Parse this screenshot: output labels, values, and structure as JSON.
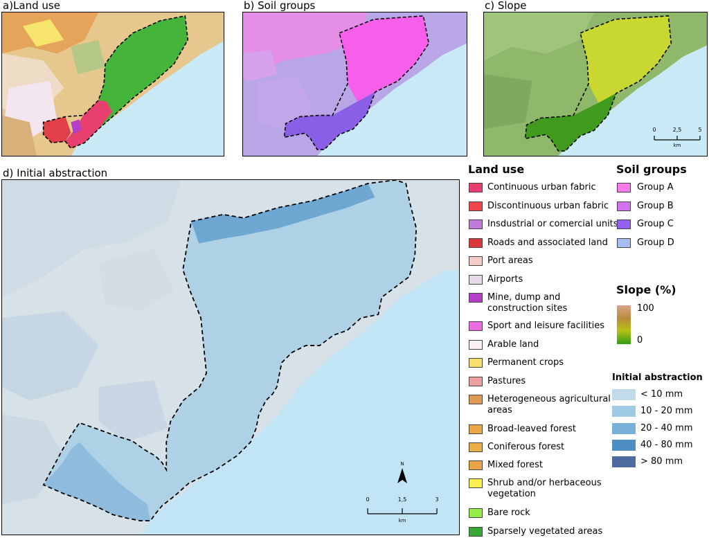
{
  "panels": {
    "a": {
      "title": "a)Land use"
    },
    "b": {
      "title": "b) Soil groups"
    },
    "c": {
      "title": "c) Slope"
    },
    "d": {
      "title": "d) Initial abstraction"
    }
  },
  "scalebar_c": {
    "ticks": [
      "0",
      "2,5",
      "5"
    ],
    "unit": "km"
  },
  "scalebar_d": {
    "ticks": [
      "0",
      "1,5",
      "3"
    ],
    "unit": "km",
    "north": "N"
  },
  "legend_land_use": {
    "title": "Land use",
    "items": [
      {
        "label": "Continuous urban fabric",
        "color": "#e8406e"
      },
      {
        "label": "Discontinuous urban fabric",
        "color": "#f0484a"
      },
      {
        "label": "Insdustrial or comercial units",
        "color": "#c07ad8"
      },
      {
        "label": "Roads and associated land",
        "color": "#d8383a"
      },
      {
        "label": "Port areas",
        "color": "#f2cdc8"
      },
      {
        "label": "Airports",
        "color": "#e6d8e8"
      },
      {
        "label": "Mine, dump and construction sites",
        "color": "#b43ec8"
      },
      {
        "label": "Sport and leisure facilities",
        "color": "#ea6ce0"
      },
      {
        "label": "Arable land",
        "color": "#fbf0f5"
      },
      {
        "label": "Permanent crops",
        "color": "#f8e070"
      },
      {
        "label": "Pastures",
        "color": "#eda0a0"
      },
      {
        "label": "Heterogeneous agricultural areas",
        "color": "#e09a58"
      },
      {
        "label": "Broad-leaved forest",
        "color": "#e8a848"
      },
      {
        "label": "Coniferous forest",
        "color": "#e8ae48"
      },
      {
        "label": "Mixed forest",
        "color": "#e8a448"
      },
      {
        "label": "Shrub and/or herbaceous vegetation",
        "color": "#f8f050"
      },
      {
        "label": "Bare rock",
        "color": "#98ec48"
      },
      {
        "label": "Sparsely vegetated areas",
        "color": "#3aa838"
      }
    ]
  },
  "legend_soil": {
    "title": "Soil groups",
    "items": [
      {
        "label": "Group A",
        "color": "#f77be9"
      },
      {
        "label": "Group B",
        "color": "#d272ef"
      },
      {
        "label": "Group C",
        "color": "#9460ef"
      },
      {
        "label": "Group D",
        "color": "#a7bdf2"
      }
    ]
  },
  "legend_slope": {
    "title": "Slope (%)",
    "max": "100",
    "min": "0"
  },
  "legend_ia": {
    "title": "Initial abstraction",
    "items": [
      {
        "label": "< 10 mm",
        "color": "#c2dbea"
      },
      {
        "label": "10 - 20 mm",
        "color": "#9ecae4"
      },
      {
        "label": "20 - 40 mm",
        "color": "#79b0d8"
      },
      {
        "label": "40 - 80 mm",
        "color": "#4f8ec5"
      },
      {
        "label": "> 80 mm",
        "color": "#4d6b9e"
      }
    ]
  }
}
